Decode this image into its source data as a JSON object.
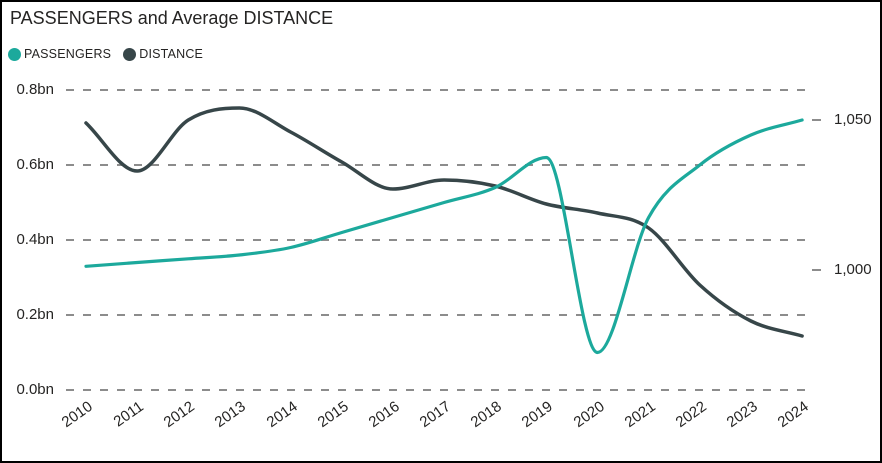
{
  "header": {
    "title": "PASSENGERS and Average DISTANCE"
  },
  "chart_data": {
    "type": "line",
    "title": "PASSENGERS and Average DISTANCE",
    "x": [
      2010,
      2011,
      2012,
      2013,
      2014,
      2015,
      2016,
      2017,
      2018,
      2019,
      2020,
      2021,
      2022,
      2023,
      2024
    ],
    "series": [
      {
        "name": "PASSENGERS",
        "color": "#1CA99C",
        "axis": "left",
        "unit": "bn",
        "values": [
          0.33,
          0.34,
          0.35,
          0.36,
          0.38,
          0.42,
          0.46,
          0.5,
          0.54,
          0.62,
          0.1,
          0.46,
          0.6,
          0.68,
          0.72
        ]
      },
      {
        "name": "DISTANCE",
        "color": "#374649",
        "axis": "right",
        "unit": "",
        "values": [
          1049,
          1033,
          1050,
          1054,
          1046,
          1036,
          1027,
          1030,
          1028,
          1022,
          1019,
          1014,
          995,
          983,
          978
        ]
      }
    ],
    "y_left": {
      "tick_labels": [
        "0.0bn",
        "0.2bn",
        "0.4bn",
        "0.6bn",
        "0.8bn"
      ],
      "tick_values": [
        0,
        0.2,
        0.4,
        0.6,
        0.8
      ],
      "min": 0,
      "max": 0.8
    },
    "y_right": {
      "tick_labels": [
        "1,000",
        "1,050"
      ],
      "tick_values": [
        1000,
        1050
      ]
    },
    "grid": {
      "orientation": "horizontal",
      "style": "dashed",
      "color": "#8c8c8c"
    },
    "legend_position": "top-left",
    "background": "#FFFFFF",
    "border_color": "#000000",
    "curve": "smooth"
  }
}
